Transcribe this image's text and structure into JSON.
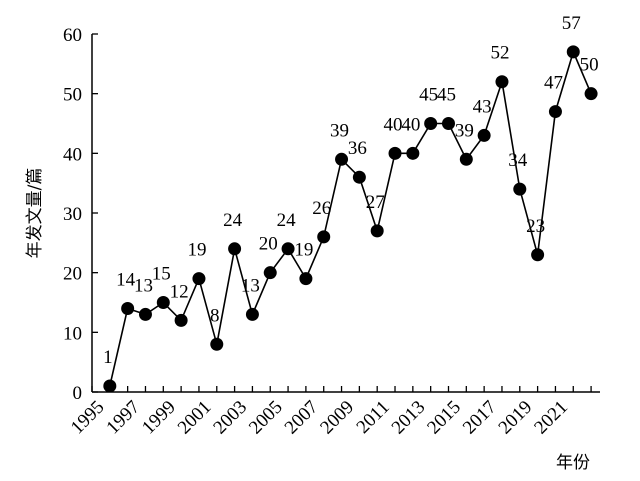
{
  "chart_data": {
    "type": "line",
    "title": "",
    "xlabel": "年份",
    "ylabel": "年发文量/篇",
    "ylim": [
      0,
      60
    ],
    "yticks": [
      0,
      10,
      20,
      30,
      40,
      50,
      60
    ],
    "xticks": [
      1995,
      1997,
      1999,
      2001,
      2003,
      2005,
      2007,
      2009,
      2011,
      2013,
      2015,
      2017,
      2019,
      2021
    ],
    "grid": false,
    "legend": "none",
    "series": [
      {
        "x": [
          1996,
          1997,
          1998,
          1999,
          2000,
          2001,
          2002,
          2003,
          2004,
          2005,
          2006,
          2007,
          2008,
          2009,
          2010,
          2011,
          2012,
          2013,
          2014,
          2015,
          2016,
          2017,
          2018,
          2019,
          2020,
          2021,
          2022,
          2023
        ],
        "values": [
          1,
          14,
          13,
          15,
          12,
          19,
          8,
          24,
          13,
          20,
          24,
          19,
          26,
          39,
          36,
          27,
          40,
          40,
          45,
          45,
          39,
          43,
          52,
          34,
          23,
          47,
          57,
          50
        ],
        "labels": [
          "1",
          "14",
          "13",
          "15",
          "12",
          "19",
          "8",
          "24",
          "13",
          "20",
          "24",
          "19",
          "26",
          "39",
          "36",
          "27",
          "40",
          "40",
          "45",
          "45",
          "39",
          "43",
          "52",
          "34",
          "23",
          "47",
          "57",
          "50"
        ],
        "color": "#000000"
      }
    ]
  }
}
